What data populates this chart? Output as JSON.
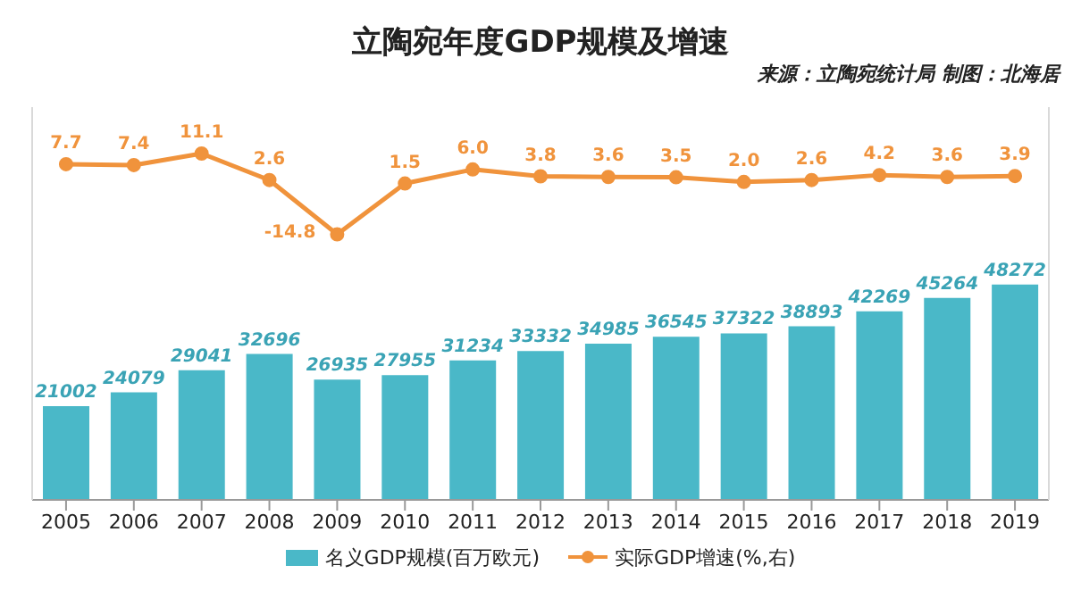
{
  "chart_data": {
    "type": "bar",
    "title": "立陶宛年度GDP规模及增速",
    "subtitle": "来源：立陶宛统计局  制图：北海居",
    "categories": [
      "2005",
      "2006",
      "2007",
      "2008",
      "2009",
      "2010",
      "2011",
      "2012",
      "2013",
      "2014",
      "2015",
      "2016",
      "2017",
      "2018",
      "2019"
    ],
    "series": [
      {
        "name": "名义GDP规模(百万欧元)",
        "color": "#4ab8c8",
        "values": [
          21002,
          24079,
          29041,
          32696,
          26935,
          27955,
          31234,
          33332,
          34985,
          36545,
          37322,
          38893,
          42269,
          45264,
          48272
        ]
      },
      {
        "name": "实际GDP增速(%,右)",
        "type": "line",
        "axis": "y2",
        "color": "#f0933c",
        "values": [
          7.7,
          7.4,
          11.1,
          2.6,
          -14.8,
          1.5,
          6.0,
          3.8,
          3.6,
          3.5,
          2.0,
          2.6,
          4.2,
          3.6,
          3.9
        ],
        "value_labels": [
          "7.7",
          "7.4",
          "11.1",
          "2.6",
          "-14.8",
          "1.5",
          "6.0",
          "3.8",
          "3.6",
          "3.5",
          "2.0",
          "2.6",
          "4.2",
          "3.6",
          "3.9"
        ]
      }
    ],
    "ylim": [
      0,
      88000
    ],
    "y2lim": [
      -100,
      26
    ],
    "data_labels": true,
    "legend": "bottom",
    "marker": "circle",
    "line_style": "solid"
  }
}
